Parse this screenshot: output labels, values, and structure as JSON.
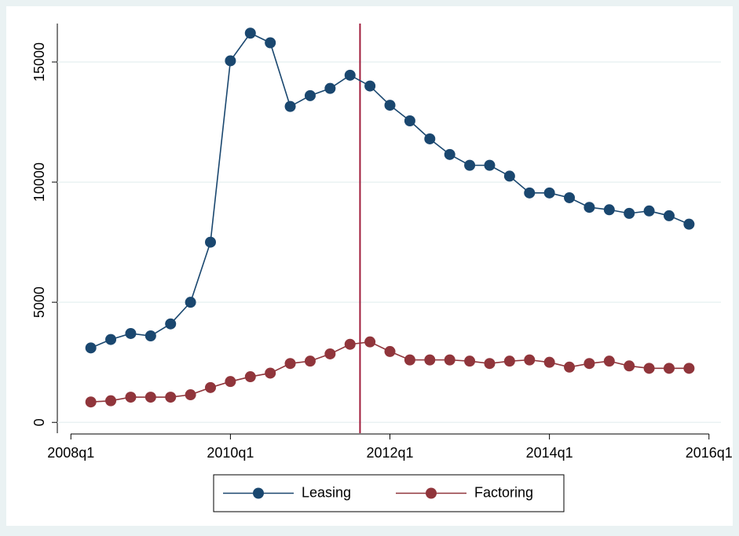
{
  "chart_data": {
    "type": "line",
    "x": [
      2008.25,
      2008.5,
      2008.75,
      2009,
      2009.25,
      2009.5,
      2009.75,
      2010,
      2010.25,
      2010.5,
      2010.75,
      2011,
      2011.25,
      2011.5,
      2011.75,
      2012,
      2012.25,
      2012.5,
      2012.75,
      2013,
      2013.25,
      2013.5,
      2013.75,
      2014,
      2014.25,
      2014.5,
      2014.75,
      2015,
      2015.25,
      2015.5,
      2015.75
    ],
    "series": [
      {
        "name": "Leasing",
        "color": "#1a476f",
        "values": [
          3100,
          3450,
          3700,
          3600,
          4100,
          5000,
          7500,
          15050,
          16200,
          15800,
          13150,
          13600,
          13900,
          14450,
          14000,
          13200,
          12550,
          11800,
          11150,
          10700,
          10700,
          10250,
          9550,
          9550,
          9350,
          8950,
          8850,
          8700,
          8800,
          8600,
          8250
        ]
      },
      {
        "name": "Factoring",
        "color": "#90353b",
        "values": [
          850,
          900,
          1050,
          1050,
          1050,
          1150,
          1450,
          1700,
          1900,
          2050,
          2450,
          2550,
          2850,
          3250,
          3350,
          2950,
          2600,
          2600,
          2600,
          2550,
          2450,
          2550,
          2600,
          2500,
          2300,
          2450,
          2550,
          2350,
          2250,
          2250,
          2250
        ]
      }
    ],
    "xlim": [
      2007.83,
      2016.15
    ],
    "xticks": [
      {
        "value": 2008,
        "label": "2008q1"
      },
      {
        "value": 2010,
        "label": "2010q1"
      },
      {
        "value": 2012,
        "label": "2012q1"
      },
      {
        "value": 2014,
        "label": "2014q1"
      },
      {
        "value": 2016,
        "label": "2016q1"
      }
    ],
    "ylim": [
      -450,
      16600
    ],
    "yticks": [
      0,
      5000,
      10000,
      15000
    ],
    "grid": true,
    "xline": {
      "value": 2011.625,
      "color": "#a01c3c"
    },
    "legend": "bottom"
  }
}
